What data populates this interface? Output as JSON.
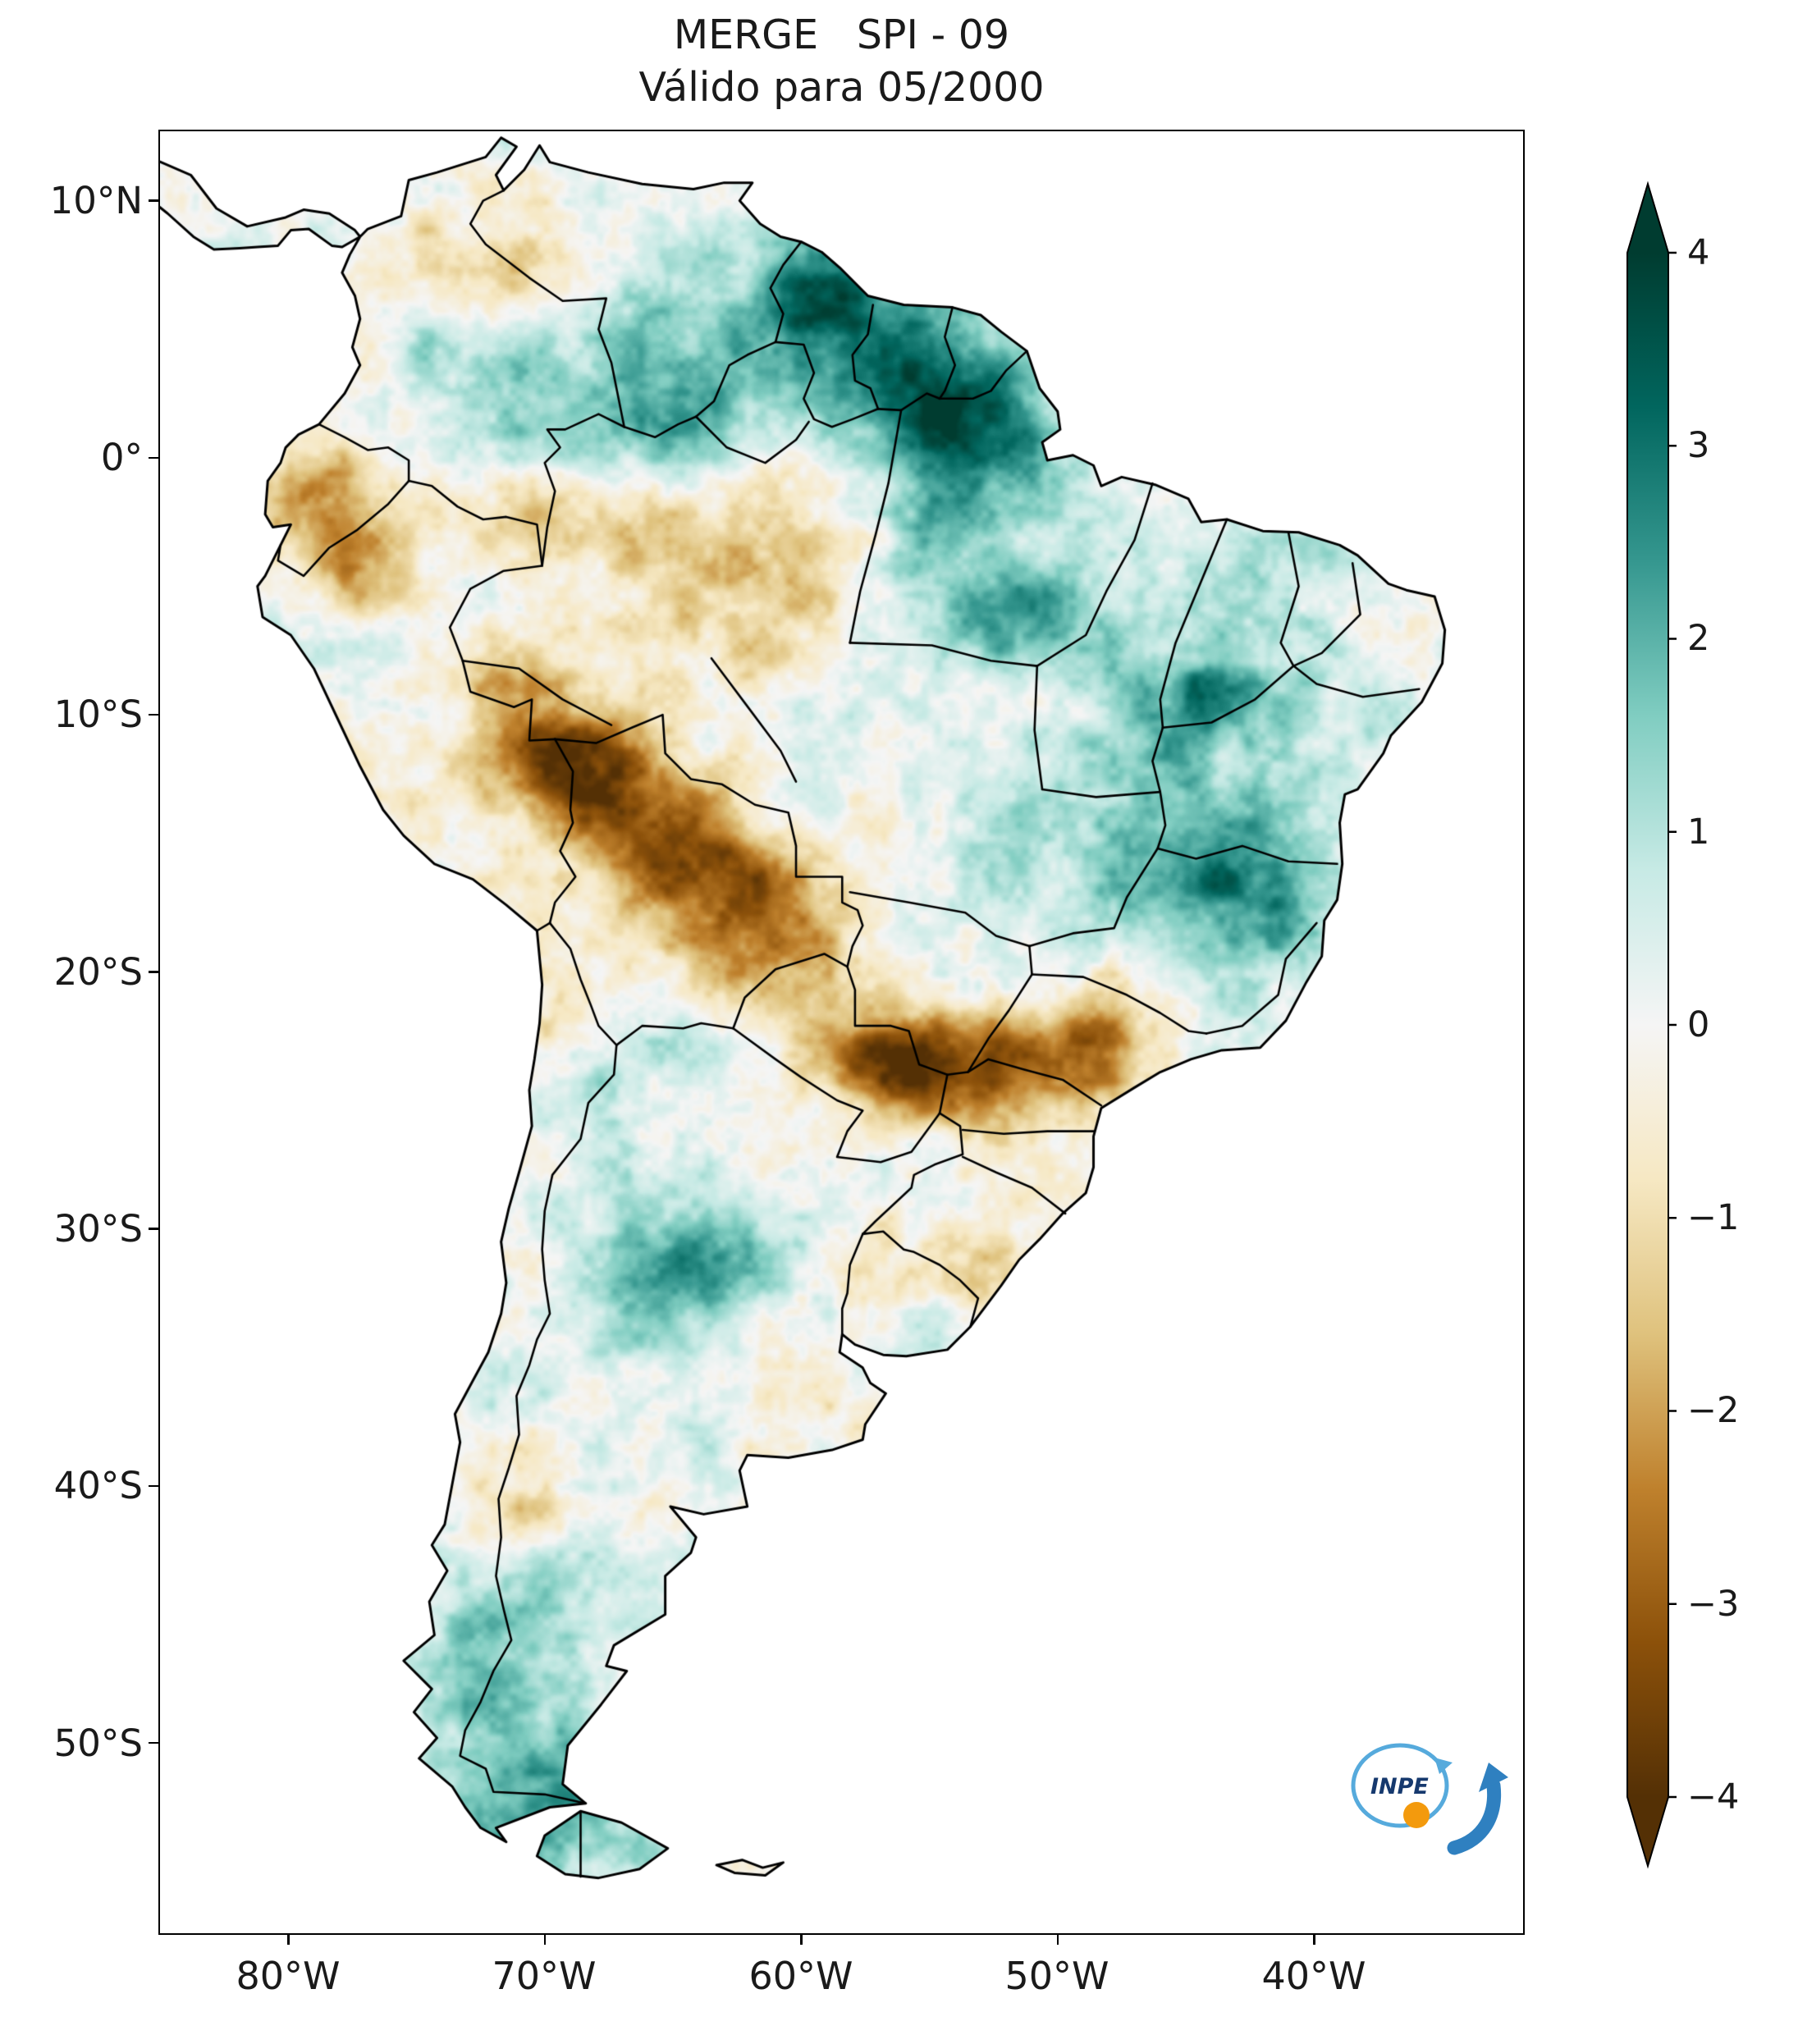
{
  "title": {
    "line1": "MERGE   SPI - 09",
    "line2": "Válido para 05/2000"
  },
  "axes": {
    "lat_ticks": [
      {
        "label": "10°N",
        "lat": 10
      },
      {
        "label": "0°",
        "lat": 0
      },
      {
        "label": "10°S",
        "lat": -10
      },
      {
        "label": "20°S",
        "lat": -20
      },
      {
        "label": "30°S",
        "lat": -30
      },
      {
        "label": "40°S",
        "lat": -40
      },
      {
        "label": "50°S",
        "lat": -50
      }
    ],
    "lon_ticks": [
      {
        "label": "80°W",
        "lon": -80
      },
      {
        "label": "70°W",
        "lon": -70
      },
      {
        "label": "60°W",
        "lon": -60
      },
      {
        "label": "50°W",
        "lon": -50
      },
      {
        "label": "40°W",
        "lon": -40
      }
    ]
  },
  "colorbar": {
    "ticks": [
      "4",
      "3",
      "2",
      "1",
      "0",
      "−1",
      "−2",
      "−3",
      "−4"
    ],
    "values": [
      4,
      3,
      2,
      1,
      0,
      -1,
      -2,
      -3,
      -4
    ],
    "stops": [
      "#003c30",
      "#01665e",
      "#35978f",
      "#80cdc1",
      "#c7eae5",
      "#f5f5f5",
      "#f6e8c3",
      "#dfc27d",
      "#bf812d",
      "#8c510a",
      "#543005"
    ]
  },
  "logo": {
    "text": "INPE",
    "orbit_color": "#56aadc",
    "arrow_color": "#2f80c0",
    "ball_color": "#f39a0d",
    "text_color": "#16396e"
  },
  "chart_data": {
    "type": "heatmap",
    "product": "MERGE",
    "index": "SPI-09",
    "valid_for": "05/2000",
    "title": "MERGE   SPI - 09",
    "subtitle": "Válido para 05/2000",
    "region": "South America",
    "colormap": "BrBG",
    "value_range": [
      -4,
      4
    ],
    "colorbar_extended": true,
    "extent": {
      "lon_min": -85,
      "lon_max": -31.85,
      "lat_min": -57.4,
      "lat_max": 12.7
    },
    "anomalies": [
      {
        "lon": -58,
        "lat": 3,
        "rx": 10,
        "ry": 5,
        "spi": 0.7
      },
      {
        "lon": -60,
        "lat": 6,
        "rx": 6,
        "ry": 3.5,
        "spi": 1.0
      },
      {
        "lon": -58.5,
        "lat": 6.5,
        "rx": 2.5,
        "ry": 2,
        "spi": 1.4
      },
      {
        "lon": -53,
        "lat": 0.5,
        "rx": 3.2,
        "ry": 2.6,
        "spi": 2.4
      },
      {
        "lon": -56.5,
        "lat": 3.5,
        "rx": 3,
        "ry": 2,
        "spi": 1.5
      },
      {
        "lon": -66,
        "lat": 3.5,
        "rx": 4,
        "ry": 3,
        "spi": 1.0
      },
      {
        "lon": -70.5,
        "lat": 1.5,
        "rx": 3,
        "ry": 2.5,
        "spi": 0.9
      },
      {
        "lon": -51.6,
        "lat": -5.8,
        "rx": 2.4,
        "ry": 2,
        "spi": 2.2
      },
      {
        "lon": -45.5,
        "lat": -11,
        "rx": 5,
        "ry": 5,
        "spi": 1.5
      },
      {
        "lon": -44.8,
        "lat": -9.3,
        "rx": 2,
        "ry": 2,
        "spi": 1.1
      },
      {
        "lon": -42.5,
        "lat": -4,
        "rx": 2.5,
        "ry": 2,
        "spi": 1.2
      },
      {
        "lon": -44.2,
        "lat": -16,
        "rx": 3.5,
        "ry": 3,
        "spi": 1.5
      },
      {
        "lon": -42.3,
        "lat": -17.9,
        "rx": 2.5,
        "ry": 2.5,
        "spi": 1.2
      },
      {
        "lon": -53.5,
        "lat": -15.7,
        "rx": 3,
        "ry": 3,
        "spi": 0.7
      },
      {
        "lon": -64.7,
        "lat": -31,
        "rx": 3,
        "ry": 2.5,
        "spi": 2.2
      },
      {
        "lon": -65,
        "lat": -35,
        "rx": 6,
        "ry": 5,
        "spi": 0.8
      },
      {
        "lon": -66.5,
        "lat": -24.5,
        "rx": 2.5,
        "ry": 2.5,
        "spi": 0.9
      },
      {
        "lon": -71.5,
        "lat": -47,
        "rx": 3,
        "ry": 5,
        "spi": 1.1
      },
      {
        "lon": -70,
        "lat": -53,
        "rx": 3,
        "ry": 2.5,
        "spi": 1.2
      },
      {
        "lon": -72,
        "lat": -50,
        "rx": 5,
        "ry": 6,
        "spi": 0.7
      },
      {
        "lon": -78.8,
        "lat": -1.8,
        "rx": 2,
        "ry": 2.2,
        "spi": -2.2
      },
      {
        "lon": -77,
        "lat": -4.5,
        "rx": 1.8,
        "ry": 2,
        "spi": -1.5
      },
      {
        "lon": -70.5,
        "lat": -1.8,
        "rx": 3.5,
        "ry": 1.5,
        "spi": -1.4
      },
      {
        "lon": -74.5,
        "lat": 8,
        "rx": 2,
        "ry": 2,
        "spi": -1.5
      },
      {
        "lon": -71,
        "lat": 7,
        "rx": 2,
        "ry": 1.5,
        "spi": -1.0
      },
      {
        "lon": -62.5,
        "lat": -5,
        "rx": 4,
        "ry": 2.5,
        "spi": -1.2
      },
      {
        "lon": -65.5,
        "lat": -3.5,
        "rx": 3,
        "ry": 2,
        "spi": -0.9
      },
      {
        "lon": -71.5,
        "lat": -8.5,
        "rx": 2,
        "ry": 1.5,
        "spi": -1.8
      },
      {
        "lon": -69.5,
        "lat": -11.5,
        "rx": 2.3,
        "ry": 1.8,
        "spi": -3.3
      },
      {
        "lon": -67,
        "lat": -13,
        "rx": 2.5,
        "ry": 2,
        "spi": -2.4
      },
      {
        "lon": -64.5,
        "lat": -15.5,
        "rx": 3,
        "ry": 2.5,
        "spi": -2.2
      },
      {
        "lon": -62,
        "lat": -17.5,
        "rx": 3,
        "ry": 2.5,
        "spi": -1.7
      },
      {
        "lon": -61,
        "lat": -20,
        "rx": 3,
        "ry": 2.5,
        "spi": -1.2
      },
      {
        "lon": -56.5,
        "lat": -23.5,
        "rx": 2.5,
        "ry": 1.6,
        "spi": -3.0
      },
      {
        "lon": -52.5,
        "lat": -23.5,
        "rx": 3,
        "ry": 2,
        "spi": -2.0
      },
      {
        "lon": -48.5,
        "lat": -23.3,
        "rx": 2.5,
        "ry": 1.8,
        "spi": -1.8
      },
      {
        "lon": -54.5,
        "lat": -31.5,
        "rx": 3,
        "ry": 2,
        "spi": -1.0
      },
      {
        "lon": -60,
        "lat": -37.5,
        "rx": 3,
        "ry": 2,
        "spi": -0.8
      },
      {
        "lon": -70.5,
        "lat": -41.5,
        "rx": 1.6,
        "ry": 1.6,
        "spi": -1.5
      }
    ]
  }
}
